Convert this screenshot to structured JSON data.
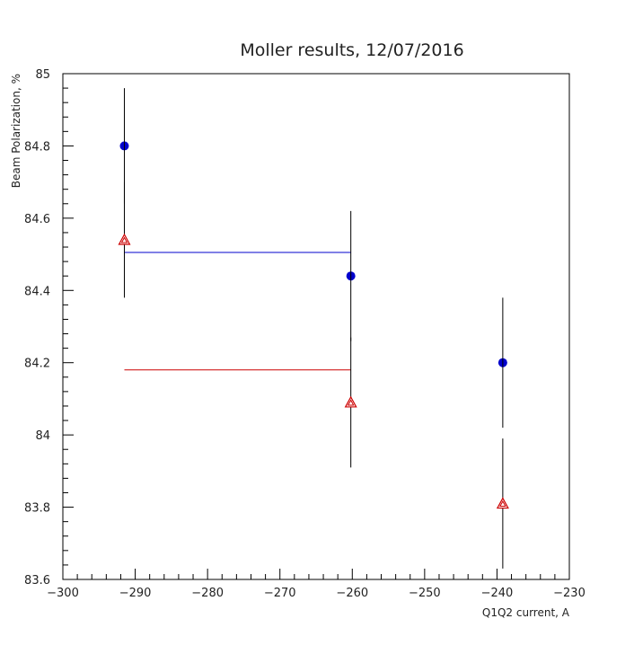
{
  "chart_data": {
    "type": "scatter",
    "title": "Moller results, 12/07/2016",
    "xlabel": "Q1Q2 current, A",
    "ylabel": "Beam Polarization, %",
    "xlim": [
      -300,
      -230
    ],
    "ylim": [
      83.6,
      85
    ],
    "x_ticks": [
      -300,
      -290,
      -280,
      -270,
      -260,
      -250,
      -240,
      -230
    ],
    "x_tick_labels": [
      "−300",
      "−290",
      "−280",
      "−270",
      "−260",
      "−250",
      "−240",
      "−230"
    ],
    "y_ticks": [
      83.6,
      83.8,
      84,
      84.2,
      84.4,
      84.6,
      84.8,
      85
    ],
    "y_tick_labels": [
      "83.6",
      "83.8",
      "84",
      "84.2",
      "84.4",
      "84.6",
      "84.8",
      "85"
    ],
    "grid": false,
    "series": [
      {
        "marker": "circle",
        "color": "#0000cc",
        "points": [
          {
            "x": -291.5,
            "y": 84.8,
            "err": 0.16
          },
          {
            "x": -260.2,
            "y": 84.44,
            "err": 0.18
          },
          {
            "x": -239.2,
            "y": 84.2,
            "err": 0.18
          }
        ],
        "fit_line": {
          "x": [
            -291.5,
            -260.2
          ],
          "y": 84.505
        }
      },
      {
        "marker": "triangle",
        "color": "#cc0000",
        "points": [
          {
            "x": -291.5,
            "y": 84.54,
            "err": 0.16
          },
          {
            "x": -260.2,
            "y": 84.09,
            "err": 0.18
          },
          {
            "x": -239.2,
            "y": 83.81,
            "err": 0.18
          }
        ],
        "fit_line": {
          "x": [
            -291.5,
            -260.2
          ],
          "y": 84.18
        }
      }
    ]
  }
}
